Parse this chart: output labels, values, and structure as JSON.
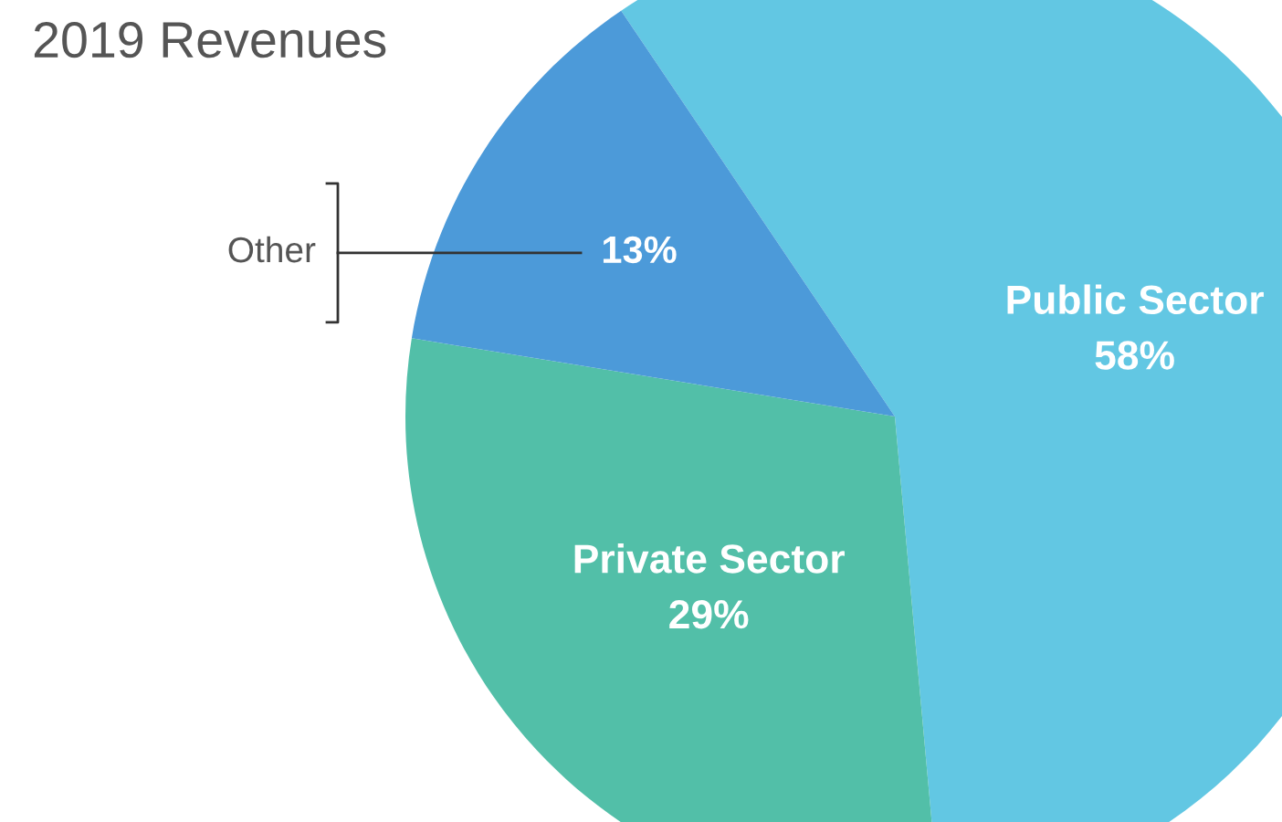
{
  "chart_data": {
    "type": "pie",
    "title": "2019 Revenues",
    "categories": [
      "Public Sector",
      "Private Sector",
      "Other"
    ],
    "values": [
      58,
      29,
      13
    ],
    "colors": [
      "#62c7e3",
      "#52bfa8",
      "#4c9ad9"
    ],
    "value_labels": [
      "58%",
      "29%",
      "13%"
    ]
  }
}
